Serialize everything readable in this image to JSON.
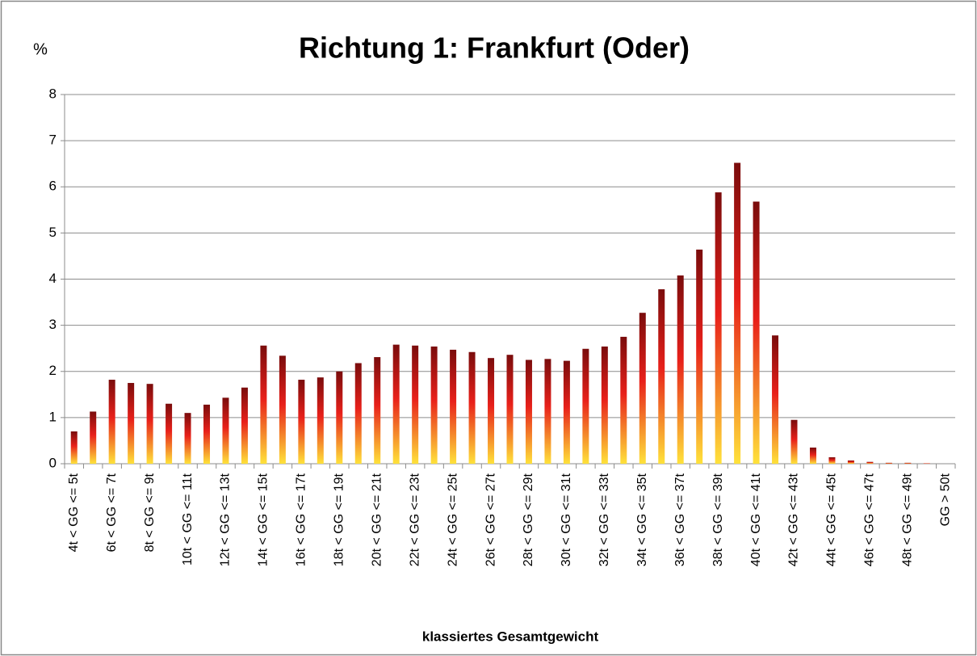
{
  "chart_data": {
    "type": "bar",
    "title": "Richtung 1: Frankfurt (Oder)",
    "y_label": "%",
    "x_label": "klassiertes Gesamtgewicht",
    "categories": [
      "4t < GG <= 5t",
      null,
      "6t < GG <= 7t",
      null,
      "8t < GG <= 9t",
      null,
      "10t < GG <= 11t",
      null,
      "12t < GG <= 13t",
      null,
      "14t < GG <= 15t",
      null,
      "16t < GG <= 17t",
      null,
      "18t < GG <= 19t",
      null,
      "20t < GG <= 21t",
      null,
      "22t < GG <= 23t",
      null,
      "24t < GG <= 25t",
      null,
      "26t < GG <= 27t",
      null,
      "28t < GG <= 29t",
      null,
      "30t < GG <= 31t",
      null,
      "32t < GG <= 33t",
      null,
      "34t < GG <= 35t",
      null,
      "36t < GG <= 37t",
      null,
      "38t < GG <= 39t",
      null,
      "40t < GG <= 41t",
      null,
      "42t < GG <= 43t",
      null,
      "44t < GG <= 45t",
      null,
      "46t < GG <= 47t",
      null,
      "48t < GG <= 49t",
      null,
      "GG > 50t"
    ],
    "values": [
      0.7,
      1.13,
      1.82,
      1.75,
      1.73,
      1.3,
      1.1,
      1.28,
      1.43,
      1.65,
      2.56,
      2.34,
      1.82,
      1.87,
      2.0,
      2.18,
      2.31,
      2.58,
      2.56,
      2.54,
      2.47,
      2.42,
      2.29,
      2.36,
      2.25,
      2.27,
      2.23,
      2.49,
      2.54,
      2.75,
      3.27,
      3.78,
      4.08,
      4.64,
      5.88,
      6.52,
      5.68,
      2.78,
      0.95,
      0.35,
      0.14,
      0.07,
      0.04,
      0.02,
      0.02,
      0.01,
      0.0
    ],
    "color": "#7a0c0c",
    "ylim": [
      0,
      8
    ],
    "yticks": [
      0,
      1,
      2,
      3,
      4,
      5,
      6,
      7,
      8
    ],
    "grid": true
  }
}
